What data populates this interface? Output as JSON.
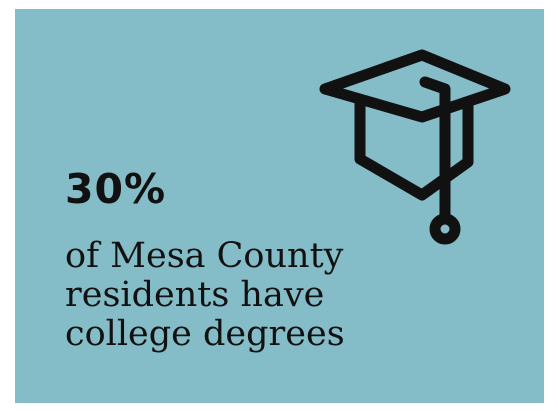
{
  "infographic": {
    "stat_value": "30%",
    "caption_lines": [
      "of Mesa County",
      "residents have",
      "college degrees"
    ],
    "icon": "graduation-cap-icon",
    "colors": {
      "background": "#84bcc7",
      "ink": "#111111"
    }
  }
}
